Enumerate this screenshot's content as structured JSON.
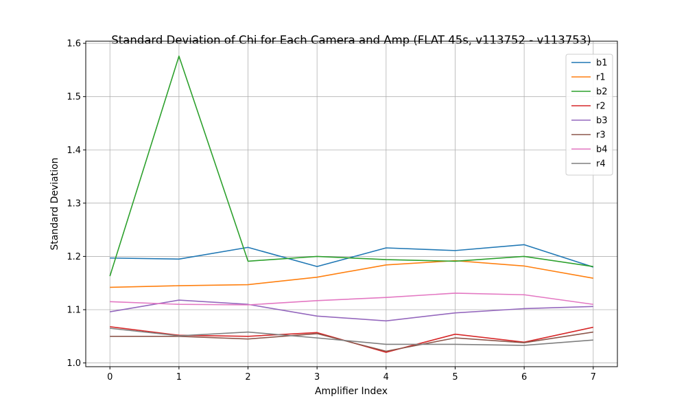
{
  "chart_data": {
    "type": "line",
    "title": "Standard Deviation of Chi for Each Camera and Amp (FLAT 45s, v113752 - v113753)",
    "xlabel": "Amplifier Index",
    "ylabel": "Standard Deviation",
    "x": [
      0,
      1,
      2,
      3,
      4,
      5,
      6,
      7
    ],
    "xlim": [
      -0.35,
      7.35
    ],
    "ylim": [
      0.993,
      1.604
    ],
    "xticks": [
      "0",
      "1",
      "2",
      "3",
      "4",
      "5",
      "6",
      "7"
    ],
    "yticks": [
      1.0,
      1.1,
      1.2,
      1.3,
      1.4,
      1.5,
      1.6
    ],
    "ytick_labels": [
      "1.0",
      "1.1",
      "1.2",
      "1.3",
      "1.4",
      "1.5",
      "1.6"
    ],
    "grid": true,
    "legend_position": "top-right",
    "series": [
      {
        "name": "b1",
        "color": "#1f77b4",
        "values": [
          1.197,
          1.195,
          1.217,
          1.181,
          1.216,
          1.211,
          1.222,
          1.18
        ]
      },
      {
        "name": "r1",
        "color": "#ff7f0e",
        "values": [
          1.142,
          1.145,
          1.147,
          1.161,
          1.184,
          1.192,
          1.182,
          1.159
        ]
      },
      {
        "name": "b2",
        "color": "#2ca02c",
        "values": [
          1.163,
          1.576,
          1.191,
          1.2,
          1.194,
          1.191,
          1.2,
          1.181
        ]
      },
      {
        "name": "r2",
        "color": "#d62728",
        "values": [
          1.068,
          1.052,
          1.05,
          1.057,
          1.02,
          1.054,
          1.039,
          1.067
        ]
      },
      {
        "name": "b3",
        "color": "#9467bd",
        "values": [
          1.096,
          1.118,
          1.11,
          1.088,
          1.079,
          1.094,
          1.102,
          1.106
        ]
      },
      {
        "name": "r3",
        "color": "#8c564b",
        "values": [
          1.05,
          1.05,
          1.045,
          1.055,
          1.022,
          1.047,
          1.038,
          1.058
        ]
      },
      {
        "name": "b4",
        "color": "#e377c2",
        "values": [
          1.115,
          1.11,
          1.109,
          1.117,
          1.123,
          1.131,
          1.128,
          1.11
        ]
      },
      {
        "name": "r4",
        "color": "#7f7f7f",
        "values": [
          1.065,
          1.051,
          1.058,
          1.047,
          1.035,
          1.035,
          1.033,
          1.043
        ]
      }
    ]
  }
}
